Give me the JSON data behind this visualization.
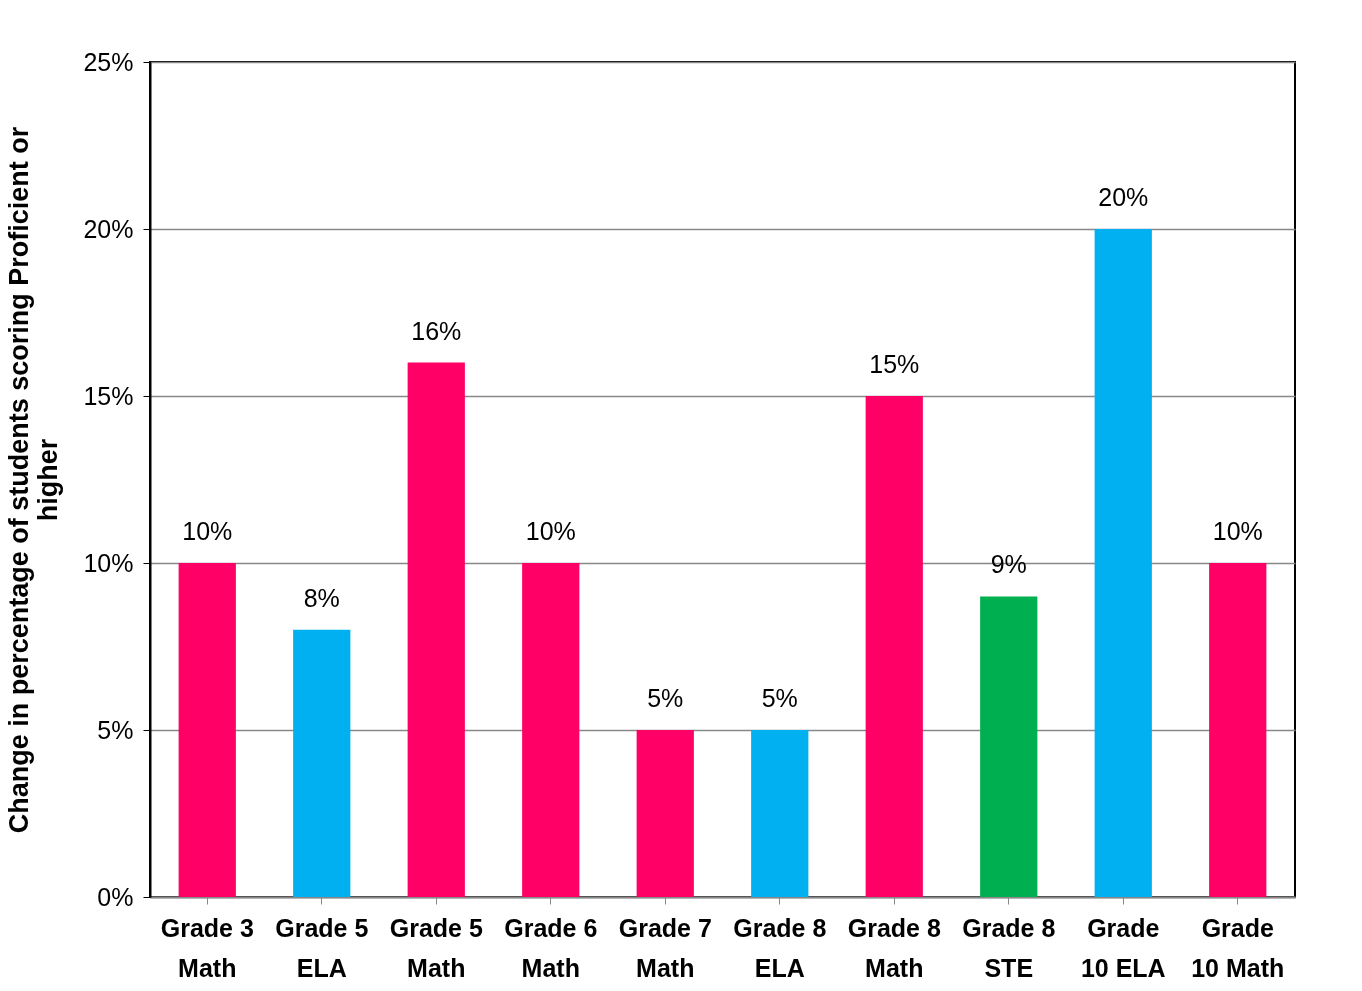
{
  "chart_data": {
    "type": "bar",
    "ylabel": "Change in percentage of students scoring Proficient or higher",
    "categories": [
      "Grade 3 Math",
      "Grade 5 ELA",
      "Grade 5 Math",
      "Grade 6 Math",
      "Grade 7 Math",
      "Grade 8 ELA",
      "Grade 8 Math",
      "Grade 8 STE",
      "Grade 10 ELA",
      "Grade 10 Math"
    ],
    "values": [
      10,
      8,
      16,
      10,
      5,
      5,
      15,
      9,
      20,
      10
    ],
    "colors": [
      "#ff0066",
      "#00b0f0",
      "#ff0066",
      "#ff0066",
      "#ff0066",
      "#00b0f0",
      "#ff0066",
      "#00b050",
      "#00b0f0",
      "#ff0066"
    ],
    "value_labels": [
      "10%",
      "8%",
      "16%",
      "10%",
      "5%",
      "5%",
      "15%",
      "9%",
      "20%",
      "10%"
    ],
    "ylim": [
      0,
      25
    ],
    "yticks": [
      {
        "value": 0,
        "label": "0%"
      },
      {
        "value": 5,
        "label": "5%"
      },
      {
        "value": 10,
        "label": "10%"
      },
      {
        "value": 15,
        "label": "15%"
      },
      {
        "value": 20,
        "label": "20%"
      },
      {
        "value": 25,
        "label": "25%"
      }
    ],
    "grid": "y"
  }
}
